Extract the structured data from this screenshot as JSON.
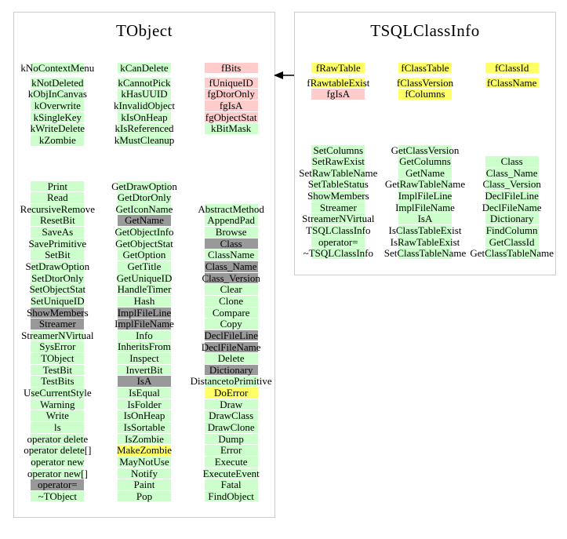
{
  "colors": {
    "public_green": "#ccffcc",
    "private_pink": "#ffcccc",
    "protected_yellow": "#ffff66",
    "overridden_gray": "#999999",
    "box_border": "#cccccc",
    "text": "#000000",
    "background": "#ffffff"
  },
  "arrow": {
    "name": "inheritance-arrow",
    "points_from": "TSQLClassInfo",
    "points_to": "TObject"
  },
  "tobject_box": {
    "title": "TObject",
    "enum_columns": [
      {
        "cells": [
          {
            "label": "kNoContextMenu",
            "bg": "green"
          },
          {
            "label": "kNotDeleted",
            "bg": "green"
          },
          {
            "label": "kObjInCanvas",
            "bg": "green"
          },
          {
            "label": "kOverwrite",
            "bg": "green"
          },
          {
            "label": "kSingleKey",
            "bg": "green"
          },
          {
            "label": "kWriteDelete",
            "bg": "green"
          },
          {
            "label": "kZombie",
            "bg": "green"
          }
        ]
      },
      {
        "cells": [
          {
            "label": "kCanDelete",
            "bg": "green"
          },
          {
            "label": "kCannotPick",
            "bg": "green"
          },
          {
            "label": "kHasUUID",
            "bg": "green"
          },
          {
            "label": "kInvalidObject",
            "bg": "green"
          },
          {
            "label": "kIsOnHeap",
            "bg": "green"
          },
          {
            "label": "kIsReferenced",
            "bg": "green"
          },
          {
            "label": "kMustCleanup",
            "bg": "green"
          }
        ]
      },
      {
        "cells": [
          {
            "label": "fBits",
            "bg": "pink"
          },
          {
            "label": "fUniqueID",
            "bg": "pink"
          },
          {
            "label": "fgDtorOnly",
            "bg": "pink"
          },
          {
            "label": "fgIsA",
            "bg": "pink"
          },
          {
            "label": "fgObjectStat",
            "bg": "pink"
          },
          {
            "label": "kBitMask",
            "bg": "green"
          }
        ]
      }
    ],
    "member_columns": [
      {
        "cells": [
          {
            "label": "Print",
            "bg": "green"
          },
          {
            "label": "Read",
            "bg": "green"
          },
          {
            "label": "RecursiveRemove",
            "bg": "green"
          },
          {
            "label": "ResetBit",
            "bg": "green"
          },
          {
            "label": "SaveAs",
            "bg": "green"
          },
          {
            "label": "SavePrimitive",
            "bg": "green"
          },
          {
            "label": "SetBit",
            "bg": "green"
          },
          {
            "label": "SetDrawOption",
            "bg": "green"
          },
          {
            "label": "SetDtorOnly",
            "bg": "green"
          },
          {
            "label": "SetObjectStat",
            "bg": "green"
          },
          {
            "label": "SetUniqueID",
            "bg": "green"
          },
          {
            "label": "ShowMembers",
            "bg": "gray"
          },
          {
            "label": "Streamer",
            "bg": "gray"
          },
          {
            "label": "StreamerNVirtual",
            "bg": "green"
          },
          {
            "label": "SysError",
            "bg": "green"
          },
          {
            "label": "TObject",
            "bg": "green"
          },
          {
            "label": "TestBit",
            "bg": "green"
          },
          {
            "label": "TestBits",
            "bg": "green"
          },
          {
            "label": "UseCurrentStyle",
            "bg": "green"
          },
          {
            "label": "Warning",
            "bg": "green"
          },
          {
            "label": "Write",
            "bg": "green"
          },
          {
            "label": "ls",
            "bg": "green"
          },
          {
            "label": "operator delete",
            "bg": "green"
          },
          {
            "label": "operator delete[]",
            "bg": "green"
          },
          {
            "label": "operator new",
            "bg": "green"
          },
          {
            "label": "operator new[]",
            "bg": "green"
          },
          {
            "label": "operator=",
            "bg": "gray"
          },
          {
            "label": "~TObject",
            "bg": "green"
          }
        ]
      },
      {
        "cells": [
          {
            "label": "GetDrawOption",
            "bg": "green"
          },
          {
            "label": "GetDtorOnly",
            "bg": "green"
          },
          {
            "label": "GetIconName",
            "bg": "green"
          },
          {
            "label": "GetName",
            "bg": "gray"
          },
          {
            "label": "GetObjectInfo",
            "bg": "green"
          },
          {
            "label": "GetObjectStat",
            "bg": "green"
          },
          {
            "label": "GetOption",
            "bg": "green"
          },
          {
            "label": "GetTitle",
            "bg": "green"
          },
          {
            "label": "GetUniqueID",
            "bg": "green"
          },
          {
            "label": "HandleTimer",
            "bg": "green"
          },
          {
            "label": "Hash",
            "bg": "green"
          },
          {
            "label": "ImplFileLine",
            "bg": "gray"
          },
          {
            "label": "ImplFileName",
            "bg": "gray"
          },
          {
            "label": "Info",
            "bg": "green"
          },
          {
            "label": "InheritsFrom",
            "bg": "green"
          },
          {
            "label": "Inspect",
            "bg": "green"
          },
          {
            "label": "InvertBit",
            "bg": "green"
          },
          {
            "label": "IsA",
            "bg": "gray"
          },
          {
            "label": "IsEqual",
            "bg": "green"
          },
          {
            "label": "IsFolder",
            "bg": "green"
          },
          {
            "label": "IsOnHeap",
            "bg": "green"
          },
          {
            "label": "IsSortable",
            "bg": "green"
          },
          {
            "label": "IsZombie",
            "bg": "green"
          },
          {
            "label": "MakeZombie",
            "bg": "yellow"
          },
          {
            "label": "MayNotUse",
            "bg": "green"
          },
          {
            "label": "Notify",
            "bg": "green"
          },
          {
            "label": "Paint",
            "bg": "green"
          },
          {
            "label": "Pop",
            "bg": "green"
          }
        ]
      },
      {
        "cells": [
          {
            "label": "AbstractMethod",
            "bg": "green"
          },
          {
            "label": "AppendPad",
            "bg": "green"
          },
          {
            "label": "Browse",
            "bg": "green"
          },
          {
            "label": "Class",
            "bg": "gray"
          },
          {
            "label": "ClassName",
            "bg": "green"
          },
          {
            "label": "Class_Name",
            "bg": "gray"
          },
          {
            "label": "Class_Version",
            "bg": "gray"
          },
          {
            "label": "Clear",
            "bg": "green"
          },
          {
            "label": "Clone",
            "bg": "green"
          },
          {
            "label": "Compare",
            "bg": "green"
          },
          {
            "label": "Copy",
            "bg": "green"
          },
          {
            "label": "DeclFileLine",
            "bg": "gray"
          },
          {
            "label": "DeclFileName",
            "bg": "gray"
          },
          {
            "label": "Delete",
            "bg": "green"
          },
          {
            "label": "Dictionary",
            "bg": "gray"
          },
          {
            "label": "DistancetoPrimitive",
            "bg": "green"
          },
          {
            "label": "DoError",
            "bg": "yellow"
          },
          {
            "label": "Draw",
            "bg": "green"
          },
          {
            "label": "DrawClass",
            "bg": "green"
          },
          {
            "label": "DrawClone",
            "bg": "green"
          },
          {
            "label": "Dump",
            "bg": "green"
          },
          {
            "label": "Error",
            "bg": "green"
          },
          {
            "label": "Execute",
            "bg": "green"
          },
          {
            "label": "ExecuteEvent",
            "bg": "green"
          },
          {
            "label": "Fatal",
            "bg": "green"
          },
          {
            "label": "FindObject",
            "bg": "green"
          }
        ]
      }
    ]
  },
  "tsqlclassinfo_box": {
    "title": "TSQLClassInfo",
    "data_member_columns": [
      {
        "cells": [
          {
            "label": "fRawTable",
            "bg": "yellow"
          },
          {
            "label": "fRawtableExist",
            "bg": "yellow"
          },
          {
            "label": "fgIsA",
            "bg": "pink"
          }
        ]
      },
      {
        "cells": [
          {
            "label": "fClassTable",
            "bg": "yellow"
          },
          {
            "label": "fClassVersion",
            "bg": "yellow"
          },
          {
            "label": "fColumns",
            "bg": "yellow"
          }
        ]
      },
      {
        "cells": [
          {
            "label": "fClassId",
            "bg": "yellow"
          },
          {
            "label": "fClassName",
            "bg": "yellow"
          }
        ]
      }
    ],
    "member_columns": [
      {
        "cells": [
          {
            "label": "SetColumns",
            "bg": "green"
          },
          {
            "label": "SetRawExist",
            "bg": "green"
          },
          {
            "label": "SetRawTableName",
            "bg": "green"
          },
          {
            "label": "SetTableStatus",
            "bg": "green"
          },
          {
            "label": "ShowMembers",
            "bg": "green"
          },
          {
            "label": "Streamer",
            "bg": "green"
          },
          {
            "label": "StreamerNVirtual",
            "bg": "green"
          },
          {
            "label": "TSQLClassInfo",
            "bg": "green"
          },
          {
            "label": "operator=",
            "bg": "green"
          },
          {
            "label": "~TSQLClassInfo",
            "bg": "green"
          }
        ]
      },
      {
        "cells": [
          {
            "label": "GetClassVersion",
            "bg": "green"
          },
          {
            "label": "GetColumns",
            "bg": "green"
          },
          {
            "label": "GetName",
            "bg": "green"
          },
          {
            "label": "GetRawTableName",
            "bg": "green"
          },
          {
            "label": "ImplFileLine",
            "bg": "green"
          },
          {
            "label": "ImplFileName",
            "bg": "green"
          },
          {
            "label": "IsA",
            "bg": "green"
          },
          {
            "label": "IsClassTableExist",
            "bg": "green"
          },
          {
            "label": "IsRawTableExist",
            "bg": "green"
          },
          {
            "label": "SetClassTableName",
            "bg": "green"
          }
        ]
      },
      {
        "cells": [
          {
            "label": "Class",
            "bg": "green"
          },
          {
            "label": "Class_Name",
            "bg": "green"
          },
          {
            "label": "Class_Version",
            "bg": "green"
          },
          {
            "label": "DeclFileLine",
            "bg": "green"
          },
          {
            "label": "DeclFileName",
            "bg": "green"
          },
          {
            "label": "Dictionary",
            "bg": "green"
          },
          {
            "label": "FindColumn",
            "bg": "green"
          },
          {
            "label": "GetClassId",
            "bg": "green"
          },
          {
            "label": "GetClassTableName",
            "bg": "green"
          }
        ]
      }
    ]
  }
}
